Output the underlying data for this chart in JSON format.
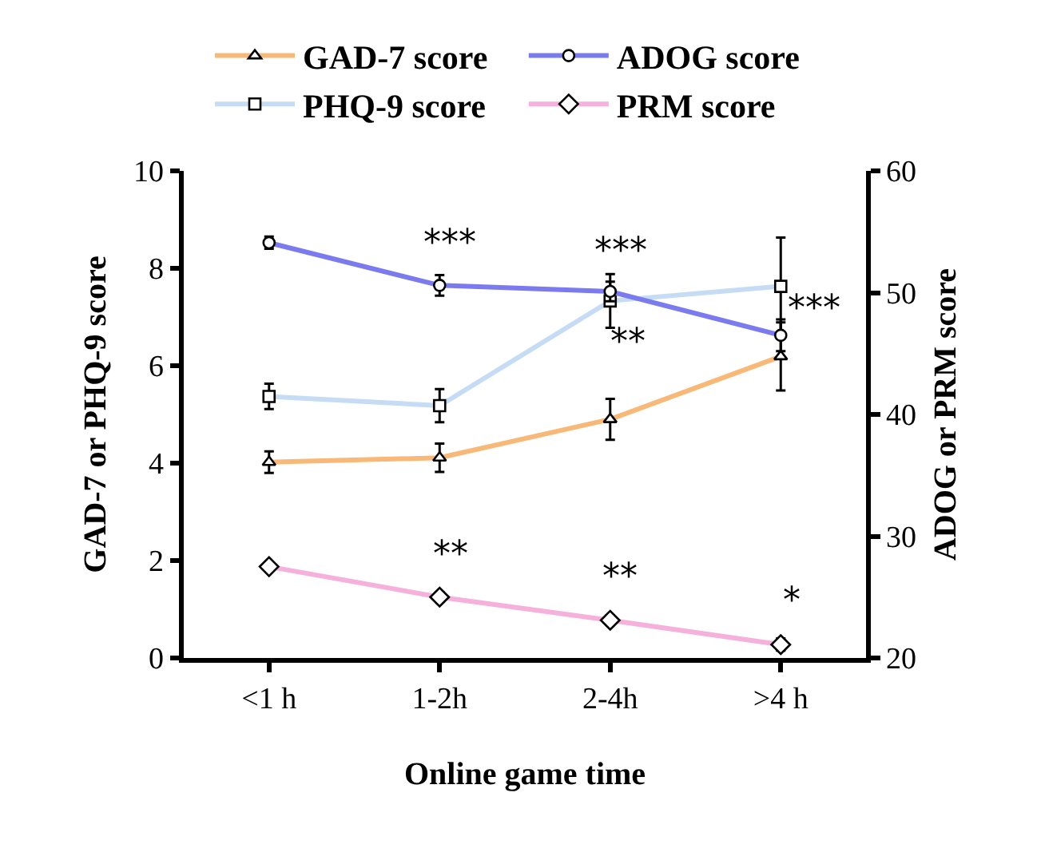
{
  "chart_data": {
    "type": "line",
    "xlabel": "Online game time",
    "ylabel": "GAD-7 or PHQ-9 score",
    "y2label": "ADOG or PRM score",
    "categories": [
      "<1 h",
      "1-2h",
      "2-4h",
      ">4 h"
    ],
    "ylim": [
      0,
      10
    ],
    "yticks": [
      0,
      2,
      4,
      6,
      8,
      10
    ],
    "y2lim": [
      20,
      60
    ],
    "y2ticks": [
      20,
      30,
      40,
      50,
      60
    ],
    "grid": false,
    "legend": "top",
    "line_style": "solid",
    "series": [
      {
        "name": "GAD-7 score",
        "color": "#f8b878",
        "marker": "triangle",
        "values": [
          4.02,
          4.11,
          4.9,
          6.19
        ],
        "errors": [
          0.22,
          0.29,
          0.42,
          0.7
        ]
      },
      {
        "name": "ADOG score",
        "color": "#7b7bef",
        "marker": "circle",
        "axis": "y2",
        "values": [
          54.1,
          50.6,
          50.1,
          46.5
        ],
        "errors": [
          0.5,
          0.85,
          0.8,
          1.3
        ]
      },
      {
        "name": "PHQ-9 score",
        "color": "#c6dcf5",
        "marker": "square",
        "values": [
          5.37,
          5.18,
          7.33,
          7.63
        ],
        "errors": [
          0.26,
          0.34,
          0.55,
          1.0
        ]
      },
      {
        "name": "PRM score",
        "color": "#f5b0dc",
        "marker": "diamond",
        "axis": "y2",
        "values": [
          27.5,
          25.0,
          23.1,
          21.1
        ],
        "errors": [
          null,
          0.4,
          0.4,
          0.5
        ]
      }
    ],
    "annotations": [
      "***",
      "***",
      "**",
      "***",
      "**",
      "**",
      "*"
    ]
  }
}
